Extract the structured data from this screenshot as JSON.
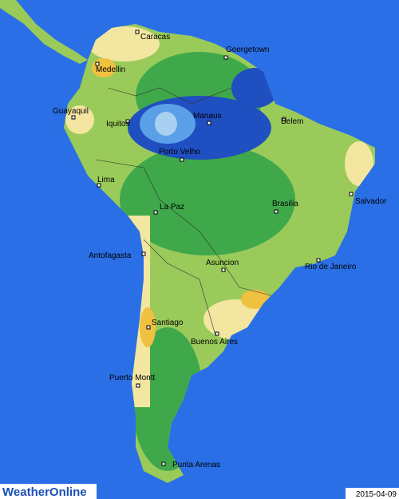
{
  "map": {
    "cities": [
      "Caracas",
      "Goergetown",
      "Medellin",
      "Guayaquil",
      "Iquitos",
      "Manaus",
      "Belem",
      "Porto Velho",
      "Lima",
      "Salvador",
      "La Paz",
      "Brasilia",
      "Antofagasta",
      "Asuncion",
      "Rio de Janeiro",
      "Santiago",
      "Buenos Aires",
      "Puerto Montt",
      "Punta Arenas"
    ]
  },
  "logo": "WeatherOnline",
  "date": "2015-04-09"
}
